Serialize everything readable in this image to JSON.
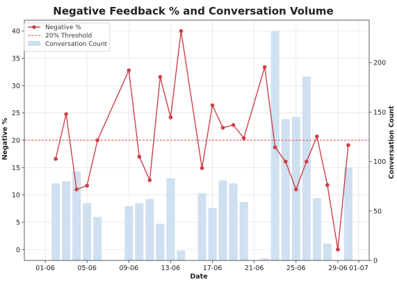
{
  "chart_data": {
    "type": "bar+line",
    "title": "Negative Feedback % and Conversation Volume",
    "xlabel": "Date",
    "ylabel_left": "Negative %",
    "ylabel_right": "Conversation Count",
    "x_ticks": [
      "01-06",
      "05-06",
      "09-06",
      "13-06",
      "17-06",
      "21-06",
      "25-06",
      "29-06",
      "01-07"
    ],
    "ylim_left": [
      -2,
      42
    ],
    "yticks_left": [
      0,
      5,
      10,
      15,
      20,
      25,
      30,
      35,
      40
    ],
    "ylim_right": [
      0,
      243
    ],
    "yticks_right": [
      0,
      50,
      100,
      150,
      200
    ],
    "threshold": 20,
    "grid": true,
    "legend_position": "top-left",
    "legend": {
      "line": "Negative %",
      "threshold": "20% Threshold",
      "bars": "Conversation Count"
    },
    "colors": {
      "line": "#cc4148",
      "threshold": "#e0444a",
      "bars": "#cfe0f1"
    },
    "bars": {
      "name": "Conversation Count",
      "points": [
        {
          "date": "2024-06-02",
          "value": 78
        },
        {
          "date": "2024-06-03",
          "value": 80
        },
        {
          "date": "2024-06-04",
          "value": 90
        },
        {
          "date": "2024-06-05",
          "value": 58
        },
        {
          "date": "2024-06-06",
          "value": 44
        },
        {
          "date": "2024-06-09",
          "value": 55
        },
        {
          "date": "2024-06-10",
          "value": 58
        },
        {
          "date": "2024-06-11",
          "value": 62
        },
        {
          "date": "2024-06-12",
          "value": 37
        },
        {
          "date": "2024-06-13",
          "value": 83
        },
        {
          "date": "2024-06-14",
          "value": 10
        },
        {
          "date": "2024-06-16",
          "value": 68
        },
        {
          "date": "2024-06-17",
          "value": 53
        },
        {
          "date": "2024-06-18",
          "value": 81
        },
        {
          "date": "2024-06-19",
          "value": 78
        },
        {
          "date": "2024-06-20",
          "value": 59
        },
        {
          "date": "2024-06-22",
          "value": 2
        },
        {
          "date": "2024-06-23",
          "value": 232
        },
        {
          "date": "2024-06-24",
          "value": 143
        },
        {
          "date": "2024-06-25",
          "value": 145
        },
        {
          "date": "2024-06-26",
          "value": 186
        },
        {
          "date": "2024-06-27",
          "value": 63
        },
        {
          "date": "2024-06-28",
          "value": 17
        },
        {
          "date": "2024-06-30",
          "value": 94
        }
      ]
    },
    "line": {
      "name": "Negative %",
      "points": [
        {
          "date": "2024-06-02",
          "value": 16.6
        },
        {
          "date": "2024-06-03",
          "value": 24.8
        },
        {
          "date": "2024-06-04",
          "value": 11.0
        },
        {
          "date": "2024-06-05",
          "value": 11.7
        },
        {
          "date": "2024-06-06",
          "value": 20.0
        },
        {
          "date": "2024-06-09",
          "value": 32.8
        },
        {
          "date": "2024-06-10",
          "value": 17.0
        },
        {
          "date": "2024-06-11",
          "value": 12.7
        },
        {
          "date": "2024-06-12",
          "value": 31.6
        },
        {
          "date": "2024-06-13",
          "value": 24.2
        },
        {
          "date": "2024-06-14",
          "value": 40.0
        },
        {
          "date": "2024-06-16",
          "value": 14.9
        },
        {
          "date": "2024-06-17",
          "value": 26.4
        },
        {
          "date": "2024-06-18",
          "value": 22.3
        },
        {
          "date": "2024-06-19",
          "value": 22.8
        },
        {
          "date": "2024-06-20",
          "value": 20.4
        },
        {
          "date": "2024-06-22",
          "value": 33.4
        },
        {
          "date": "2024-06-23",
          "value": 18.7
        },
        {
          "date": "2024-06-24",
          "value": 16.1
        },
        {
          "date": "2024-06-25",
          "value": 11.0
        },
        {
          "date": "2024-06-26",
          "value": 16.1
        },
        {
          "date": "2024-06-27",
          "value": 20.7
        },
        {
          "date": "2024-06-28",
          "value": 11.8
        },
        {
          "date": "2024-06-29",
          "value": 0.0
        },
        {
          "date": "2024-06-30",
          "value": 19.1
        }
      ]
    }
  }
}
